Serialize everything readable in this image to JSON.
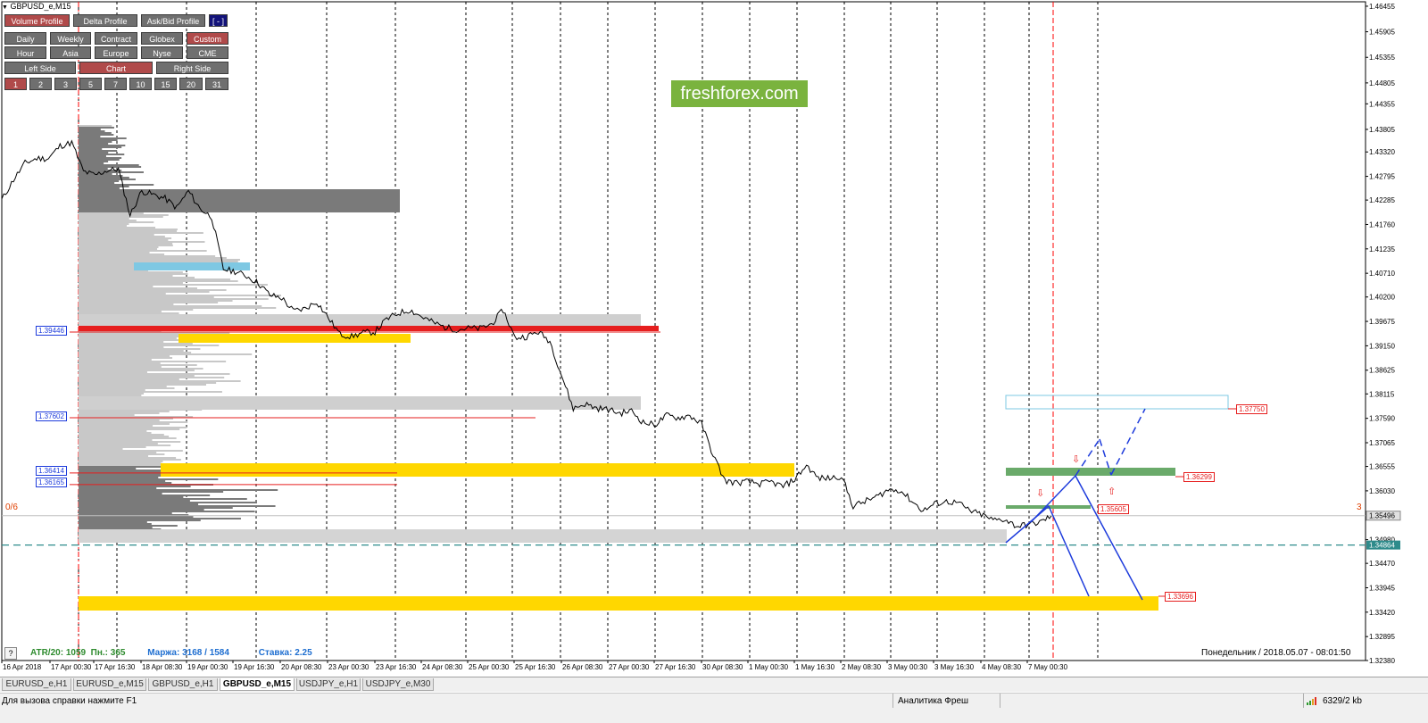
{
  "window": {
    "title": "GBPUSD_e,M15",
    "current_date": "Понедельник  /  2018.05.07  -  08:01:50",
    "logo": "freshforex.com"
  },
  "panel": {
    "row1": [
      "Volume Profile",
      "Delta Profile",
      "Ask/Bid Profile",
      "[ - ]"
    ],
    "row2": [
      "Daily",
      "Weekly",
      "Contract",
      "Globex",
      "Custom"
    ],
    "row3": [
      "Hour",
      "Asia",
      "Europe",
      "Nyse",
      "CME"
    ],
    "row4": [
      "Left Side",
      "Chart",
      "Right Side"
    ],
    "row5": [
      "1",
      "2",
      "3",
      "5",
      "7",
      "10",
      "15",
      "20",
      "31"
    ]
  },
  "stats": {
    "atr": "ATR/20: 1059",
    "pn": "Пн.: 365",
    "margin": "Маржа: 3168 / 1584",
    "rate": "Ставка: 2.25"
  },
  "side_labels": {
    "left": "0/6",
    "right": "3"
  },
  "help_button": "?",
  "levels": {
    "left": [
      "1.39446",
      "1.37602",
      "1.36414",
      "1.36165"
    ],
    "right": [
      "1.37750",
      "1.36299",
      "1.35605",
      "1.33696"
    ]
  },
  "price_axis": {
    "labels": [
      "1.46455",
      "1.45905",
      "1.45355",
      "1.44805",
      "1.44355",
      "1.43805",
      "1.43320",
      "1.42795",
      "1.42285",
      "1.41760",
      "1.41235",
      "1.40710",
      "1.40200",
      "1.39675",
      "1.39150",
      "1.38625",
      "1.38115",
      "1.37590",
      "1.37065",
      "1.36555",
      "1.36030",
      "1.35496",
      "1.34980",
      "1.34864",
      "1.34470",
      "1.33945",
      "1.33420",
      "1.32895",
      "1.32380"
    ],
    "current": "1.35496",
    "bid_line": "1.34864"
  },
  "time_axis": [
    "16 Apr 2018",
    "17 Apr 00:30",
    "17 Apr 16:30",
    "18 Apr 08:30",
    "19 Apr 00:30",
    "19 Apr 16:30",
    "20 Apr 08:30",
    "23 Apr 00:30",
    "23 Apr 16:30",
    "24 Apr 08:30",
    "25 Apr 00:30",
    "25 Apr 16:30",
    "26 Apr 08:30",
    "27 Apr 00:30",
    "27 Apr 16:30",
    "30 Apr 08:30",
    "1 May 00:30",
    "1 May 16:30",
    "2 May 08:30",
    "3 May 00:30",
    "3 May 16:30",
    "4 May 08:30",
    "7 May 00:30"
  ],
  "tabs": [
    "EURUSD_e,H1",
    "EURUSD_e,M15",
    "GBPUSD_e,H1",
    "GBPUSD_e,M15",
    "USDJPY_e,H1",
    "USDJPY_e,M30"
  ],
  "active_tab": "GBPUSD_e,M15",
  "status": {
    "help": "Для вызова справки нажмите F1",
    "profile": "Аналитика Фреш",
    "traffic": "6329/2 kb"
  },
  "colors": {
    "up_level": "#ff0000",
    "down_level": "#1e3cdc",
    "poc": "#e61e1e",
    "value_area": "#ffd700",
    "green_zone": "#6aaa6a",
    "cyan_zone": "#7ec8e3",
    "bid_line": "#2e8b8b",
    "brand": "#7ab33e"
  },
  "chart_data": {
    "type": "line",
    "symbol": "GBPUSD_e",
    "timeframe": "M15",
    "x_labels": [
      "16 Apr 2018",
      "17 Apr 00:30",
      "17 Apr 16:30",
      "18 Apr 08:30",
      "19 Apr 00:30",
      "19 Apr 16:30",
      "20 Apr 08:30",
      "23 Apr 00:30",
      "23 Apr 16:30",
      "24 Apr 08:30",
      "25 Apr 00:30",
      "25 Apr 16:30",
      "26 Apr 08:30",
      "27 Apr 00:30",
      "27 Apr 16:30",
      "30 Apr 08:30",
      "1 May 00:30",
      "1 May 16:30",
      "2 May 08:30",
      "3 May 00:30",
      "3 May 16:30",
      "4 May 08:30",
      "7 May 00:30"
    ],
    "ylim": [
      1.3238,
      1.4655
    ],
    "series": [
      {
        "values": [
          1.4229,
          1.4272,
          1.4308,
          1.4318,
          1.4318,
          1.4345,
          1.4352,
          1.429,
          1.4282,
          1.4292,
          1.4295,
          1.4196,
          1.4248,
          1.424,
          1.4232,
          1.4212,
          1.4248,
          1.421,
          1.4192,
          1.408,
          1.4075,
          1.4065,
          1.405,
          1.4024,
          1.4018,
          1.399,
          1.3995,
          1.401,
          1.3975,
          1.394,
          1.3935,
          1.3943,
          1.3945,
          1.3972,
          1.3985,
          1.3992,
          1.3978,
          1.3965,
          1.3955,
          1.395,
          1.3953,
          1.3952,
          1.3962,
          1.3992,
          1.3932,
          1.3935,
          1.3945,
          1.3925,
          1.3852,
          1.378,
          1.379,
          1.3781,
          1.3778,
          1.377,
          1.3775,
          1.375,
          1.3745,
          1.3765,
          1.376,
          1.3765,
          1.3747,
          1.368,
          1.3625,
          1.362,
          1.3623,
          1.3618,
          1.3622,
          1.3612,
          1.3628,
          1.3658,
          1.363,
          1.363,
          1.3635,
          1.357,
          1.358,
          1.359,
          1.3605,
          1.3605,
          1.3582,
          1.356,
          1.3575,
          1.358,
          1.3577,
          1.356,
          1.3552,
          1.354,
          1.3542,
          1.3527,
          1.353,
          1.3535,
          1.3549
        ]
      }
    ],
    "levels": [
      1.39446,
      1.37602,
      1.36414,
      1.36165,
      1.3775,
      1.36299,
      1.35605,
      1.33696
    ],
    "current_price": 1.35496,
    "bid_line": 1.34864,
    "grid": true
  }
}
